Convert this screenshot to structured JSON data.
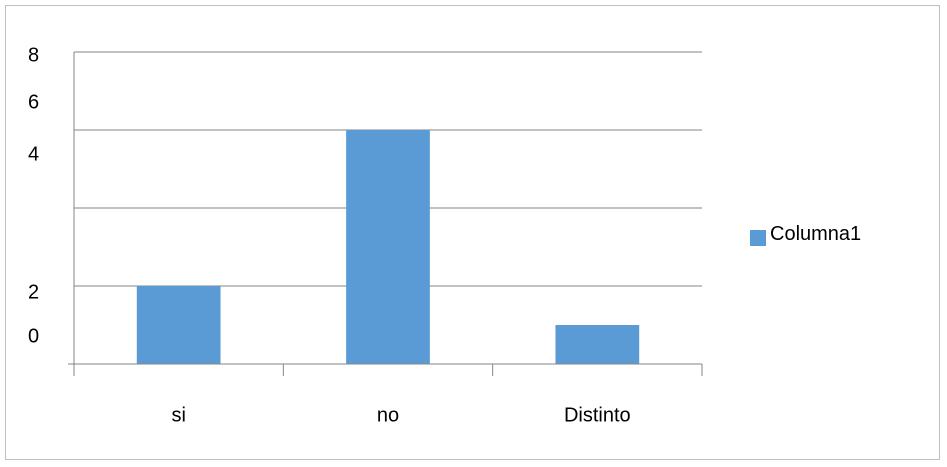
{
  "chart_data": {
    "type": "bar",
    "categories": [
      "si",
      "no",
      "Distinto"
    ],
    "series": [
      {
        "name": "Columna1",
        "values": [
          2,
          6,
          1
        ]
      }
    ],
    "y_tick_labels": [
      "8",
      "6",
      "4",
      "2",
      "0"
    ],
    "ylim": [
      0,
      8
    ],
    "grid": true,
    "legend_position": "right",
    "colors": {
      "bar": "#5b9bd5",
      "grid": "#868686",
      "axis": "#868686"
    }
  }
}
